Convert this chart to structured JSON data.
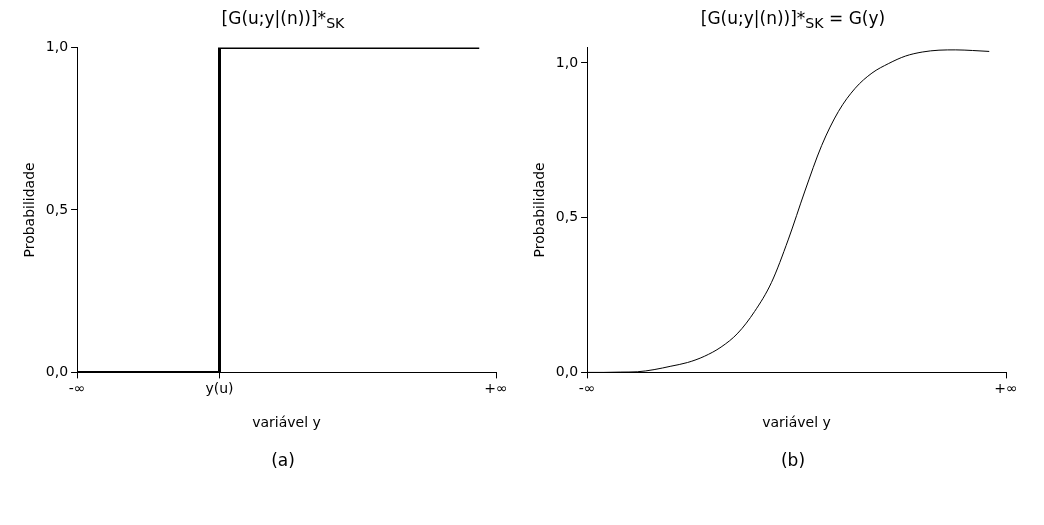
{
  "chart_data": [
    {
      "type": "step",
      "title": "[G(u;y|(n))]*$_{SK}$",
      "xlabel": "variável y",
      "ylabel": "Probabilidade",
      "annotations": [
        "(a)"
      ],
      "categories": [
        "-∞",
        null,
        null,
        null,
        null,
        null,
        null,
        null,
        null,
        null,
        null,
        null,
        null,
        null,
        null,
        null,
        null,
        "y(u)",
        null,
        null,
        null,
        null,
        null,
        null,
        null,
        null,
        null,
        null,
        null,
        null,
        null,
        null,
        null,
        null,
        null,
        null,
        null,
        null,
        null,
        null,
        null,
        null,
        null,
        null,
        null,
        null,
        null,
        null,
        null,
        null,
        "+∞"
      ],
      "values": [
        0,
        0,
        0,
        0,
        0,
        0,
        0,
        0,
        0,
        0,
        0,
        0,
        0,
        0,
        0,
        0,
        0,
        1,
        1,
        1,
        1,
        1,
        1,
        1,
        1,
        1,
        1,
        1,
        1,
        1,
        1,
        1,
        1,
        1,
        1,
        1,
        1,
        1,
        1,
        1,
        1,
        1,
        1,
        1,
        1,
        1,
        1,
        1,
        1,
        null,
        null
      ],
      "color": "#000000",
      "ylim": [
        0,
        1
      ],
      "yticks": [
        {
          "value": 0,
          "label": "0,0"
        },
        {
          "value": 0.5,
          "label": "0,5"
        },
        {
          "value": 1,
          "label": "1,0"
        }
      ]
    },
    {
      "type": "line",
      "title": "[G(u;y|(n))]*$_{SK}$ = G(y)",
      "xlabel": "variável y",
      "ylabel": "Probabilidade",
      "annotations": [
        "(b)"
      ],
      "categories": [
        "-∞",
        null,
        null,
        null,
        null,
        null,
        null,
        null,
        null,
        null,
        null,
        null,
        null,
        null,
        null,
        null,
        null,
        null,
        null,
        null,
        null,
        null,
        null,
        null,
        null,
        "+∞"
      ],
      "values": [
        0,
        0,
        0.001,
        0.002,
        0.009,
        0.02,
        0.032,
        0.052,
        0.082,
        0.127,
        0.197,
        0.29,
        0.428,
        0.586,
        0.733,
        0.843,
        0.918,
        0.967,
        0.998,
        1.022,
        1.035,
        1.041,
        1.042,
        1.04,
        1.037,
        null
      ],
      "color": "#000000",
      "ylim": [
        0,
        1.05
      ],
      "yticks": [
        {
          "value": 0,
          "label": "0,0"
        },
        {
          "value": 0.5,
          "label": "0,5"
        },
        {
          "value": 1,
          "label": "1,0"
        }
      ]
    }
  ]
}
